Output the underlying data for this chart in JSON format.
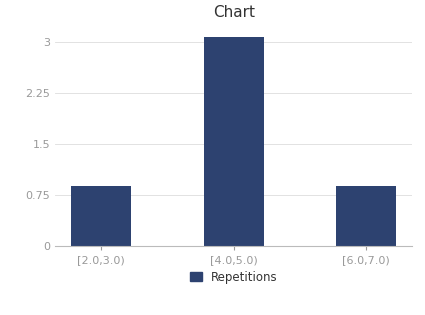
{
  "title": "Chart",
  "categories": [
    "[2.0,3.0)",
    "[4.0,5.0)",
    "[6.0,7.0)"
  ],
  "values": [
    0.875,
    3.083,
    0.875
  ],
  "bar_color": "#2d4270",
  "legend_label": "Repetitions",
  "ylim": [
    0,
    3.25
  ],
  "yticks": [
    0,
    0.75,
    1.5,
    2.25,
    3
  ],
  "bar_width": 0.45,
  "title_fontsize": 11,
  "tick_fontsize": 8,
  "legend_fontsize": 8.5,
  "background_color": "#ffffff",
  "spine_color": "#bbbbbb",
  "tick_color": "#999999"
}
